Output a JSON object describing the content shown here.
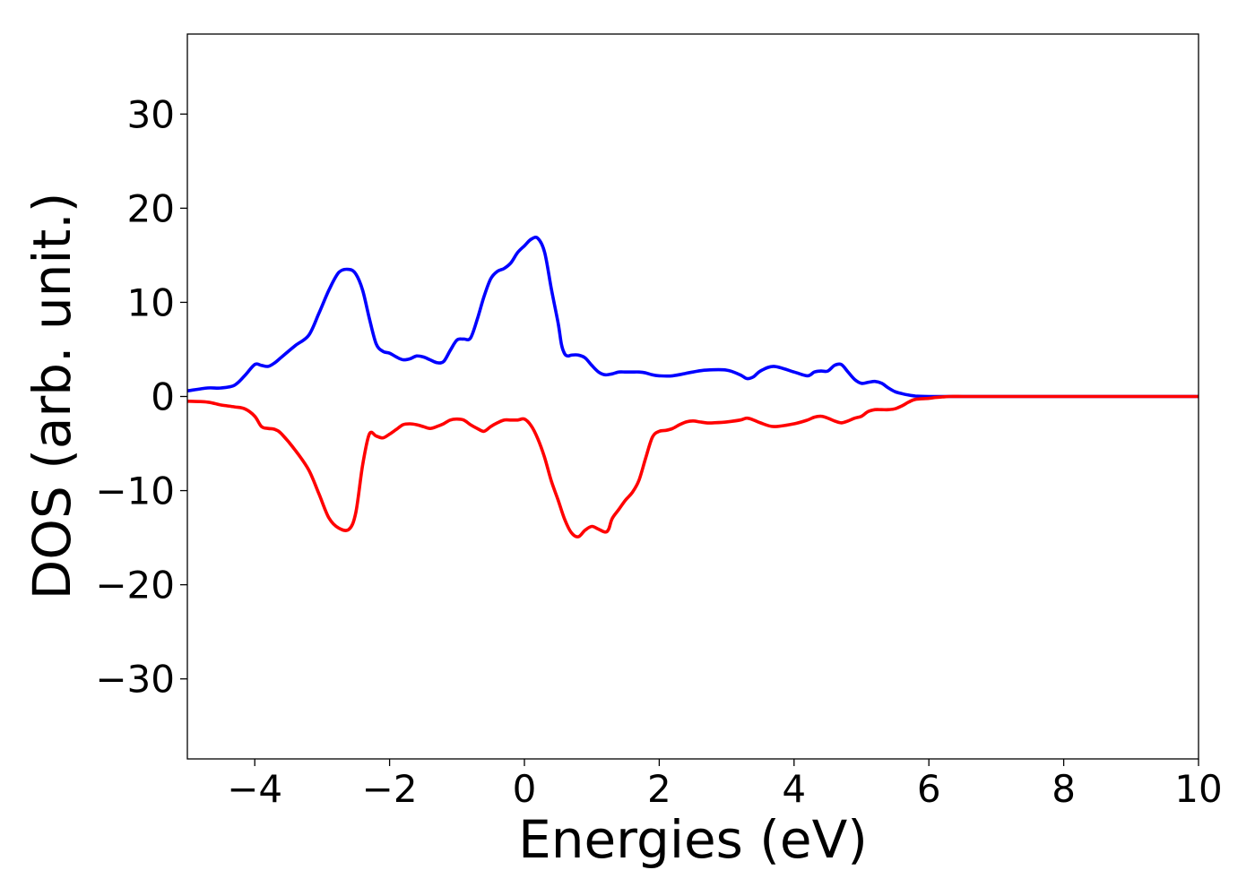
{
  "chart_data": {
    "type": "line",
    "title": "",
    "xlabel": "Energies (eV)",
    "ylabel": "DOS (arb. unit.)",
    "xlim": [
      -5,
      10
    ],
    "ylim": [
      -38.5,
      38.5
    ],
    "grid": false,
    "legend": "none",
    "xticks": [
      -4,
      -2,
      0,
      2,
      4,
      6,
      8,
      10
    ],
    "xtick_labels": [
      "−4",
      "−2",
      "0",
      "2",
      "4",
      "6",
      "8",
      "10"
    ],
    "yticks": [
      30,
      20,
      10,
      0,
      -10,
      -20,
      -30
    ],
    "ytick_labels": [
      "30",
      "20",
      "10",
      "0",
      "−10",
      "−20",
      "−30"
    ],
    "series": [
      {
        "color": "#0000ff",
        "x": [
          -5.0,
          -4.7,
          -4.5,
          -4.3,
          -4.15,
          -4.0,
          -3.9,
          -3.8,
          -3.7,
          -3.6,
          -3.4,
          -3.2,
          -3.05,
          -2.9,
          -2.75,
          -2.6,
          -2.5,
          -2.4,
          -2.3,
          -2.2,
          -2.1,
          -2.0,
          -1.9,
          -1.8,
          -1.7,
          -1.6,
          -1.5,
          -1.4,
          -1.3,
          -1.2,
          -1.1,
          -1.0,
          -0.9,
          -0.8,
          -0.7,
          -0.6,
          -0.5,
          -0.4,
          -0.3,
          -0.2,
          -0.1,
          0.0,
          0.1,
          0.2,
          0.3,
          0.4,
          0.5,
          0.55,
          0.6,
          0.65,
          0.7,
          0.8,
          0.9,
          1.0,
          1.1,
          1.2,
          1.3,
          1.4,
          1.5,
          1.6,
          1.7,
          1.8,
          1.9,
          2.0,
          2.2,
          2.5,
          2.7,
          3.0,
          3.2,
          3.3,
          3.4,
          3.5,
          3.7,
          4.0,
          4.2,
          4.3,
          4.4,
          4.5,
          4.6,
          4.7,
          4.8,
          4.9,
          5.0,
          5.1,
          5.2,
          5.3,
          5.4,
          5.5,
          5.6,
          5.7,
          5.8,
          6.0,
          6.1,
          6.2,
          6.3,
          6.5,
          6.7,
          7.0,
          7.3,
          7.6,
          8.0,
          9.0,
          10.0
        ],
        "y": [
          0.6,
          0.9,
          0.9,
          1.2,
          2.2,
          3.4,
          3.3,
          3.2,
          3.6,
          4.2,
          5.4,
          6.5,
          8.8,
          11.3,
          13.2,
          13.5,
          13.0,
          11.3,
          8.3,
          5.6,
          4.8,
          4.6,
          4.2,
          3.9,
          4.0,
          4.3,
          4.2,
          3.9,
          3.6,
          3.7,
          4.9,
          6.0,
          6.1,
          6.2,
          8.2,
          10.6,
          12.5,
          13.3,
          13.6,
          14.2,
          15.3,
          16.0,
          16.7,
          16.8,
          15.3,
          11.4,
          7.8,
          5.5,
          4.5,
          4.3,
          4.4,
          4.4,
          4.1,
          3.3,
          2.6,
          2.3,
          2.4,
          2.6,
          2.6,
          2.6,
          2.6,
          2.5,
          2.3,
          2.2,
          2.2,
          2.6,
          2.8,
          2.8,
          2.3,
          1.9,
          2.1,
          2.7,
          3.2,
          2.6,
          2.2,
          2.6,
          2.7,
          2.7,
          3.3,
          3.4,
          2.6,
          1.8,
          1.4,
          1.5,
          1.6,
          1.4,
          0.9,
          0.5,
          0.3,
          0.15,
          0.05,
          0.0,
          0.0,
          0.0,
          0.0,
          0.0,
          0.0,
          0.0,
          0.0,
          0.0,
          0.0,
          0.0,
          0.0
        ]
      },
      {
        "color": "#ff0000",
        "x": [
          -5.0,
          -4.7,
          -4.5,
          -4.3,
          -4.15,
          -4.0,
          -3.9,
          -3.8,
          -3.7,
          -3.6,
          -3.4,
          -3.2,
          -3.05,
          -2.9,
          -2.75,
          -2.6,
          -2.5,
          -2.4,
          -2.3,
          -2.2,
          -2.1,
          -2.0,
          -1.9,
          -1.8,
          -1.7,
          -1.6,
          -1.5,
          -1.4,
          -1.3,
          -1.2,
          -1.1,
          -1.0,
          -0.9,
          -0.8,
          -0.7,
          -0.6,
          -0.5,
          -0.4,
          -0.3,
          -0.2,
          -0.1,
          0.0,
          0.1,
          0.2,
          0.3,
          0.4,
          0.5,
          0.6,
          0.7,
          0.8,
          0.9,
          1.0,
          1.1,
          1.2,
          1.25,
          1.3,
          1.4,
          1.5,
          1.6,
          1.7,
          1.8,
          1.9,
          2.0,
          2.1,
          2.2,
          2.3,
          2.4,
          2.5,
          2.6,
          2.7,
          2.8,
          3.0,
          3.2,
          3.3,
          3.4,
          3.5,
          3.7,
          4.0,
          4.2,
          4.3,
          4.4,
          4.5,
          4.6,
          4.7,
          4.8,
          4.9,
          5.0,
          5.1,
          5.2,
          5.3,
          5.4,
          5.5,
          5.6,
          5.7,
          5.8,
          6.0,
          6.1,
          6.2,
          6.3,
          6.5,
          6.7,
          7.0,
          7.3,
          7.6,
          8.0,
          9.0,
          10.0
        ],
        "y": [
          -0.5,
          -0.6,
          -0.9,
          -1.1,
          -1.3,
          -2.1,
          -3.2,
          -3.4,
          -3.5,
          -4.0,
          -5.7,
          -7.8,
          -10.3,
          -12.9,
          -14.0,
          -14.1,
          -12.3,
          -7.3,
          -4.0,
          -4.2,
          -4.4,
          -4.0,
          -3.5,
          -3.0,
          -2.9,
          -3.0,
          -3.2,
          -3.4,
          -3.2,
          -2.9,
          -2.5,
          -2.4,
          -2.5,
          -3.0,
          -3.4,
          -3.7,
          -3.2,
          -2.8,
          -2.5,
          -2.5,
          -2.5,
          -2.4,
          -3.1,
          -4.5,
          -6.5,
          -9.0,
          -11.0,
          -13.1,
          -14.5,
          -14.9,
          -14.2,
          -13.8,
          -14.1,
          -14.4,
          -14.1,
          -13.0,
          -12.0,
          -11.0,
          -10.2,
          -8.9,
          -6.5,
          -4.3,
          -3.7,
          -3.6,
          -3.4,
          -3.0,
          -2.7,
          -2.6,
          -2.7,
          -2.8,
          -2.8,
          -2.7,
          -2.5,
          -2.3,
          -2.5,
          -2.8,
          -3.2,
          -2.9,
          -2.5,
          -2.2,
          -2.1,
          -2.3,
          -2.6,
          -2.8,
          -2.6,
          -2.3,
          -2.1,
          -1.6,
          -1.4,
          -1.4,
          -1.4,
          -1.3,
          -1.0,
          -0.6,
          -0.3,
          -0.2,
          -0.1,
          -0.05,
          0.0,
          0.0,
          0.0,
          0.0,
          0.0,
          0.0,
          0.0,
          0.0,
          0.0
        ]
      }
    ]
  }
}
